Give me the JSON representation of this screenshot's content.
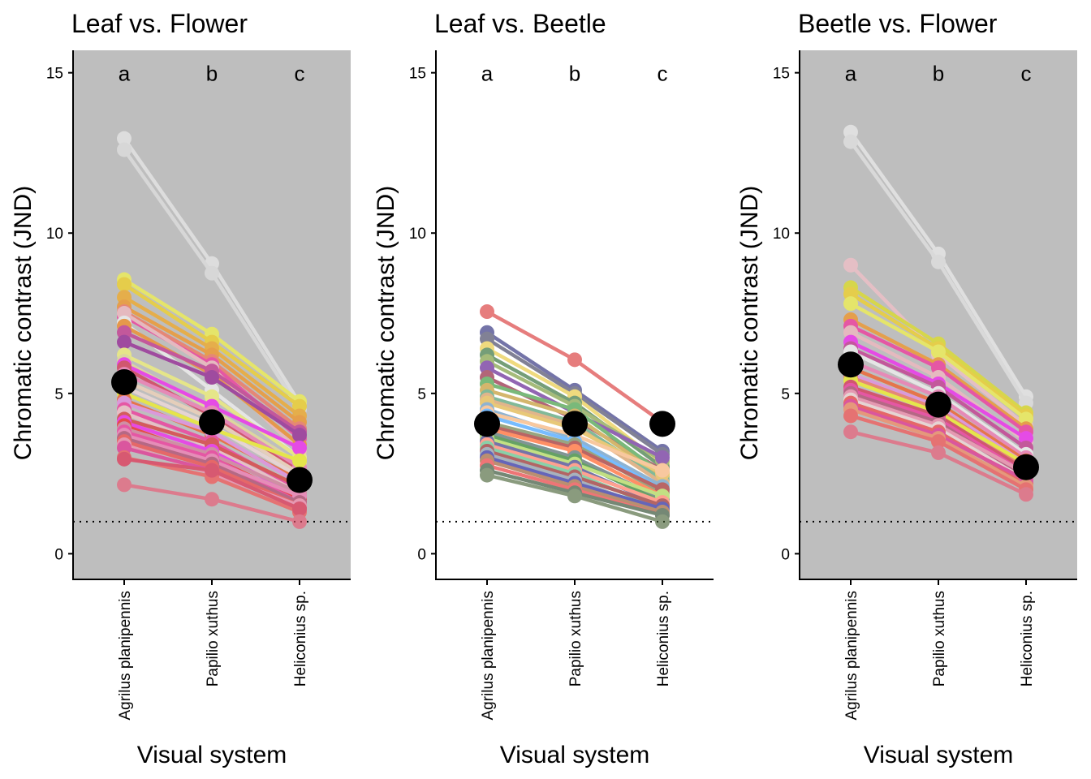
{
  "figure": {
    "y_axis_label": "Chromatic contrast (JND)",
    "x_axis_label": "Visual system",
    "x_categories": [
      "Agrilus planipennis",
      "Papilio xuthus",
      "Heliconius sp."
    ],
    "y_ticks": [
      0,
      5,
      10,
      15
    ],
    "ylim": [
      -0.8,
      15.7
    ],
    "threshold_line": 1,
    "significance_letters": [
      "a",
      "b",
      "c"
    ]
  },
  "chart_data": [
    {
      "type": "line",
      "title": "Leaf vs. Flower",
      "background": "#bebebe",
      "categories": [
        "Agrilus planipennis",
        "Papilio xuthus",
        "Heliconius sp."
      ],
      "means": [
        5.35,
        4.1,
        2.3
      ],
      "series": [
        {
          "color": "#f2f2f2",
          "values": [
            12.95,
            9.05,
            4.7
          ]
        },
        {
          "color": "#e8e8e8",
          "values": [
            12.6,
            8.75,
            4.5
          ]
        },
        {
          "color": "#ffff33",
          "values": [
            8.55,
            6.85,
            4.75
          ]
        },
        {
          "color": "#ffd700",
          "values": [
            8.4,
            6.6,
            4.6
          ]
        },
        {
          "color": "#ffa500",
          "values": [
            8.0,
            6.4,
            4.3
          ]
        },
        {
          "color": "#ff8c00",
          "values": [
            7.7,
            6.2,
            4.1
          ]
        },
        {
          "color": "#ff6347",
          "values": [
            7.55,
            6.0,
            3.9
          ]
        },
        {
          "color": "#ff1493",
          "values": [
            7.4,
            5.9,
            3.6
          ]
        },
        {
          "color": "#ffb6c1",
          "values": [
            7.5,
            5.8,
            3.2
          ]
        },
        {
          "color": "#ffffff",
          "values": [
            7.2,
            5.1,
            3.0
          ]
        },
        {
          "color": "#ff7f00",
          "values": [
            7.1,
            5.6,
            3.4
          ]
        },
        {
          "color": "#c71585",
          "values": [
            6.9,
            5.7,
            3.8
          ]
        },
        {
          "color": "#8b008b",
          "values": [
            6.6,
            5.5,
            3.7
          ]
        },
        {
          "color": "#ffff66",
          "values": [
            6.2,
            4.9,
            3.0
          ]
        },
        {
          "color": "#f0e68c",
          "values": [
            6.0,
            4.5,
            2.8
          ]
        },
        {
          "color": "#ff00ff",
          "values": [
            5.9,
            4.6,
            3.3
          ]
        },
        {
          "color": "#dc143c",
          "values": [
            5.8,
            4.3,
            2.6
          ]
        },
        {
          "color": "#ff69b4",
          "values": [
            5.6,
            4.4,
            2.7
          ]
        },
        {
          "color": "#ffdab9",
          "values": [
            5.4,
            4.2,
            2.5
          ]
        },
        {
          "color": "#ffe4e1",
          "values": [
            5.2,
            4.0,
            2.4
          ]
        },
        {
          "color": "#ffff00",
          "values": [
            5.0,
            3.9,
            2.9
          ]
        },
        {
          "color": "#ff4500",
          "values": [
            4.8,
            3.7,
            2.3
          ]
        },
        {
          "color": "#ee82ee",
          "values": [
            4.7,
            3.8,
            2.2
          ]
        },
        {
          "color": "#ff1493",
          "values": [
            4.5,
            3.5,
            2.0
          ]
        },
        {
          "color": "#ffc0cb",
          "values": [
            4.4,
            3.3,
            1.9
          ]
        },
        {
          "color": "#e31a1c",
          "values": [
            4.2,
            3.4,
            2.1
          ]
        },
        {
          "color": "#ff00ff",
          "values": [
            4.1,
            3.2,
            1.8
          ]
        },
        {
          "color": "#ff0000",
          "values": [
            4.0,
            3.0,
            1.7
          ]
        },
        {
          "color": "#db7093",
          "values": [
            3.9,
            3.1,
            1.9
          ]
        },
        {
          "color": "#ff1493",
          "values": [
            3.8,
            3.0,
            1.6
          ]
        },
        {
          "color": "#ff6eb4",
          "values": [
            3.7,
            2.9,
            1.8
          ]
        },
        {
          "color": "#b03060",
          "values": [
            3.6,
            2.8,
            1.6
          ]
        },
        {
          "color": "#ff3030",
          "values": [
            3.5,
            2.7,
            1.5
          ]
        },
        {
          "color": "#ff82ab",
          "values": [
            3.4,
            2.5,
            1.5
          ]
        },
        {
          "color": "#ee1289",
          "values": [
            3.3,
            2.6,
            1.4
          ]
        },
        {
          "color": "#ff4040",
          "values": [
            3.0,
            2.4,
            1.3
          ]
        },
        {
          "color": "#e8173e",
          "values": [
            2.95,
            2.6,
            1.4
          ]
        },
        {
          "color": "#f0506e",
          "values": [
            2.15,
            1.7,
            1.0
          ]
        }
      ]
    },
    {
      "type": "line",
      "title": "Leaf vs. Beetle",
      "background": "#ffffff",
      "categories": [
        "Agrilus planipennis",
        "Papilio xuthus",
        "Heliconius sp."
      ],
      "means": [
        4.05,
        4.05,
        4.05
      ],
      "series": [
        {
          "color": "#d62728",
          "values": [
            7.55,
            6.05,
            4.1
          ]
        },
        {
          "color": "#191970",
          "values": [
            6.9,
            5.1,
            3.2
          ]
        },
        {
          "color": "#2f2f4f",
          "values": [
            6.7,
            5.0,
            3.1
          ]
        },
        {
          "color": "#e6c229",
          "values": [
            6.4,
            4.9,
            2.8
          ]
        },
        {
          "color": "#1b5e20",
          "values": [
            6.2,
            4.7,
            2.7
          ]
        },
        {
          "color": "#6b8e23",
          "values": [
            6.0,
            4.6,
            2.9
          ]
        },
        {
          "color": "#4b0082",
          "values": [
            5.8,
            4.4,
            3.0
          ]
        },
        {
          "color": "#800020",
          "values": [
            5.5,
            4.2,
            2.6
          ]
        },
        {
          "color": "#228b22",
          "values": [
            5.3,
            4.5,
            2.5
          ]
        },
        {
          "color": "#b8860b",
          "values": [
            5.1,
            4.3,
            2.4
          ]
        },
        {
          "color": "#2e8b57",
          "values": [
            4.9,
            4.1,
            2.3
          ]
        },
        {
          "color": "#cd853f",
          "values": [
            4.8,
            4.0,
            2.2
          ]
        },
        {
          "color": "#daa520",
          "values": [
            4.7,
            3.9,
            2.5
          ]
        },
        {
          "color": "#4682b4",
          "values": [
            4.5,
            3.6,
            2.1
          ]
        },
        {
          "color": "#f4a460",
          "values": [
            4.4,
            3.7,
            2.6
          ]
        },
        {
          "color": "#1e90ff",
          "values": [
            4.3,
            3.5,
            2.0
          ]
        },
        {
          "color": "#556b2f",
          "values": [
            4.1,
            3.4,
            1.9
          ]
        },
        {
          "color": "#8b0000",
          "values": [
            4.0,
            3.3,
            2.0
          ]
        },
        {
          "color": "#ff4500",
          "values": [
            3.9,
            3.2,
            1.8
          ]
        },
        {
          "color": "#2f4f4f",
          "values": [
            3.8,
            3.0,
            1.7
          ]
        },
        {
          "color": "#006400",
          "values": [
            3.7,
            2.9,
            1.6
          ]
        },
        {
          "color": "#9acd32",
          "values": [
            3.6,
            2.8,
            1.8
          ]
        },
        {
          "color": "#191970",
          "values": [
            3.5,
            2.7,
            1.5
          ]
        },
        {
          "color": "#ff6347",
          "values": [
            3.4,
            2.6,
            1.6
          ]
        },
        {
          "color": "#3cb371",
          "values": [
            3.3,
            2.5,
            1.4
          ]
        },
        {
          "color": "#800000",
          "values": [
            3.2,
            2.4,
            1.5
          ]
        },
        {
          "color": "#708090",
          "values": [
            3.1,
            2.3,
            1.3
          ]
        },
        {
          "color": "#00008b",
          "values": [
            3.0,
            2.2,
            1.4
          ]
        },
        {
          "color": "#8b4513",
          "values": [
            2.9,
            2.1,
            1.3
          ]
        },
        {
          "color": "#e31a1c",
          "values": [
            2.75,
            2.0,
            1.2
          ]
        },
        {
          "color": "#1b3a1b",
          "values": [
            2.6,
            1.9,
            1.2
          ]
        },
        {
          "color": "#3d5a2a",
          "values": [
            2.45,
            1.8,
            1.0
          ]
        }
      ]
    },
    {
      "type": "line",
      "title": "Beetle vs. Flower",
      "background": "#bebebe",
      "categories": [
        "Agrilus planipennis",
        "Papilio xuthus",
        "Heliconius sp."
      ],
      "means": [
        5.9,
        4.65,
        2.7
      ],
      "series": [
        {
          "color": "#f5f5f5",
          "values": [
            13.15,
            9.35,
            4.9
          ]
        },
        {
          "color": "#ebebeb",
          "values": [
            12.85,
            9.1,
            4.7
          ]
        },
        {
          "color": "#ffc0cb",
          "values": [
            9.0,
            6.2,
            4.0
          ]
        },
        {
          "color": "#e6e600",
          "values": [
            8.3,
            6.55,
            4.4
          ]
        },
        {
          "color": "#ffd700",
          "values": [
            8.1,
            6.4,
            4.3
          ]
        },
        {
          "color": "#ffff33",
          "values": [
            7.8,
            6.3,
            4.2
          ]
        },
        {
          "color": "#ff8c00",
          "values": [
            7.3,
            5.9,
            3.9
          ]
        },
        {
          "color": "#ff1493",
          "values": [
            7.1,
            5.8,
            3.8
          ]
        },
        {
          "color": "#ffb6c1",
          "values": [
            6.9,
            5.5,
            3.5
          ]
        },
        {
          "color": "#ff00ff",
          "values": [
            6.6,
            5.3,
            3.6
          ]
        },
        {
          "color": "#c71585",
          "values": [
            6.4,
            5.2,
            3.3
          ]
        },
        {
          "color": "#ffffff",
          "values": [
            6.3,
            5.0,
            3.1
          ]
        },
        {
          "color": "#ff69b4",
          "values": [
            6.0,
            4.9,
            3.0
          ]
        },
        {
          "color": "#ff4500",
          "values": [
            5.8,
            4.7,
            2.9
          ]
        },
        {
          "color": "#ee82ee",
          "values": [
            5.6,
            4.6,
            2.8
          ]
        },
        {
          "color": "#ff6347",
          "values": [
            5.5,
            4.5,
            2.7
          ]
        },
        {
          "color": "#ffff00",
          "values": [
            5.4,
            4.4,
            2.8
          ]
        },
        {
          "color": "#dc143c",
          "values": [
            5.2,
            4.3,
            2.6
          ]
        },
        {
          "color": "#ff1493",
          "values": [
            5.1,
            4.2,
            2.5
          ]
        },
        {
          "color": "#b03060",
          "values": [
            5.0,
            4.1,
            2.4
          ]
        },
        {
          "color": "#ff82ab",
          "values": [
            4.9,
            4.0,
            2.5
          ]
        },
        {
          "color": "#ffe4e1",
          "values": [
            4.8,
            3.9,
            2.3
          ]
        },
        {
          "color": "#ff3030",
          "values": [
            4.7,
            3.8,
            2.2
          ]
        },
        {
          "color": "#ee1289",
          "values": [
            4.6,
            3.7,
            2.3
          ]
        },
        {
          "color": "#ff7f50",
          "values": [
            4.5,
            3.6,
            2.1
          ]
        },
        {
          "color": "#ff4040",
          "values": [
            4.3,
            3.5,
            2.0
          ]
        },
        {
          "color": "#f0506e",
          "values": [
            3.8,
            3.15,
            1.85
          ]
        }
      ]
    }
  ]
}
